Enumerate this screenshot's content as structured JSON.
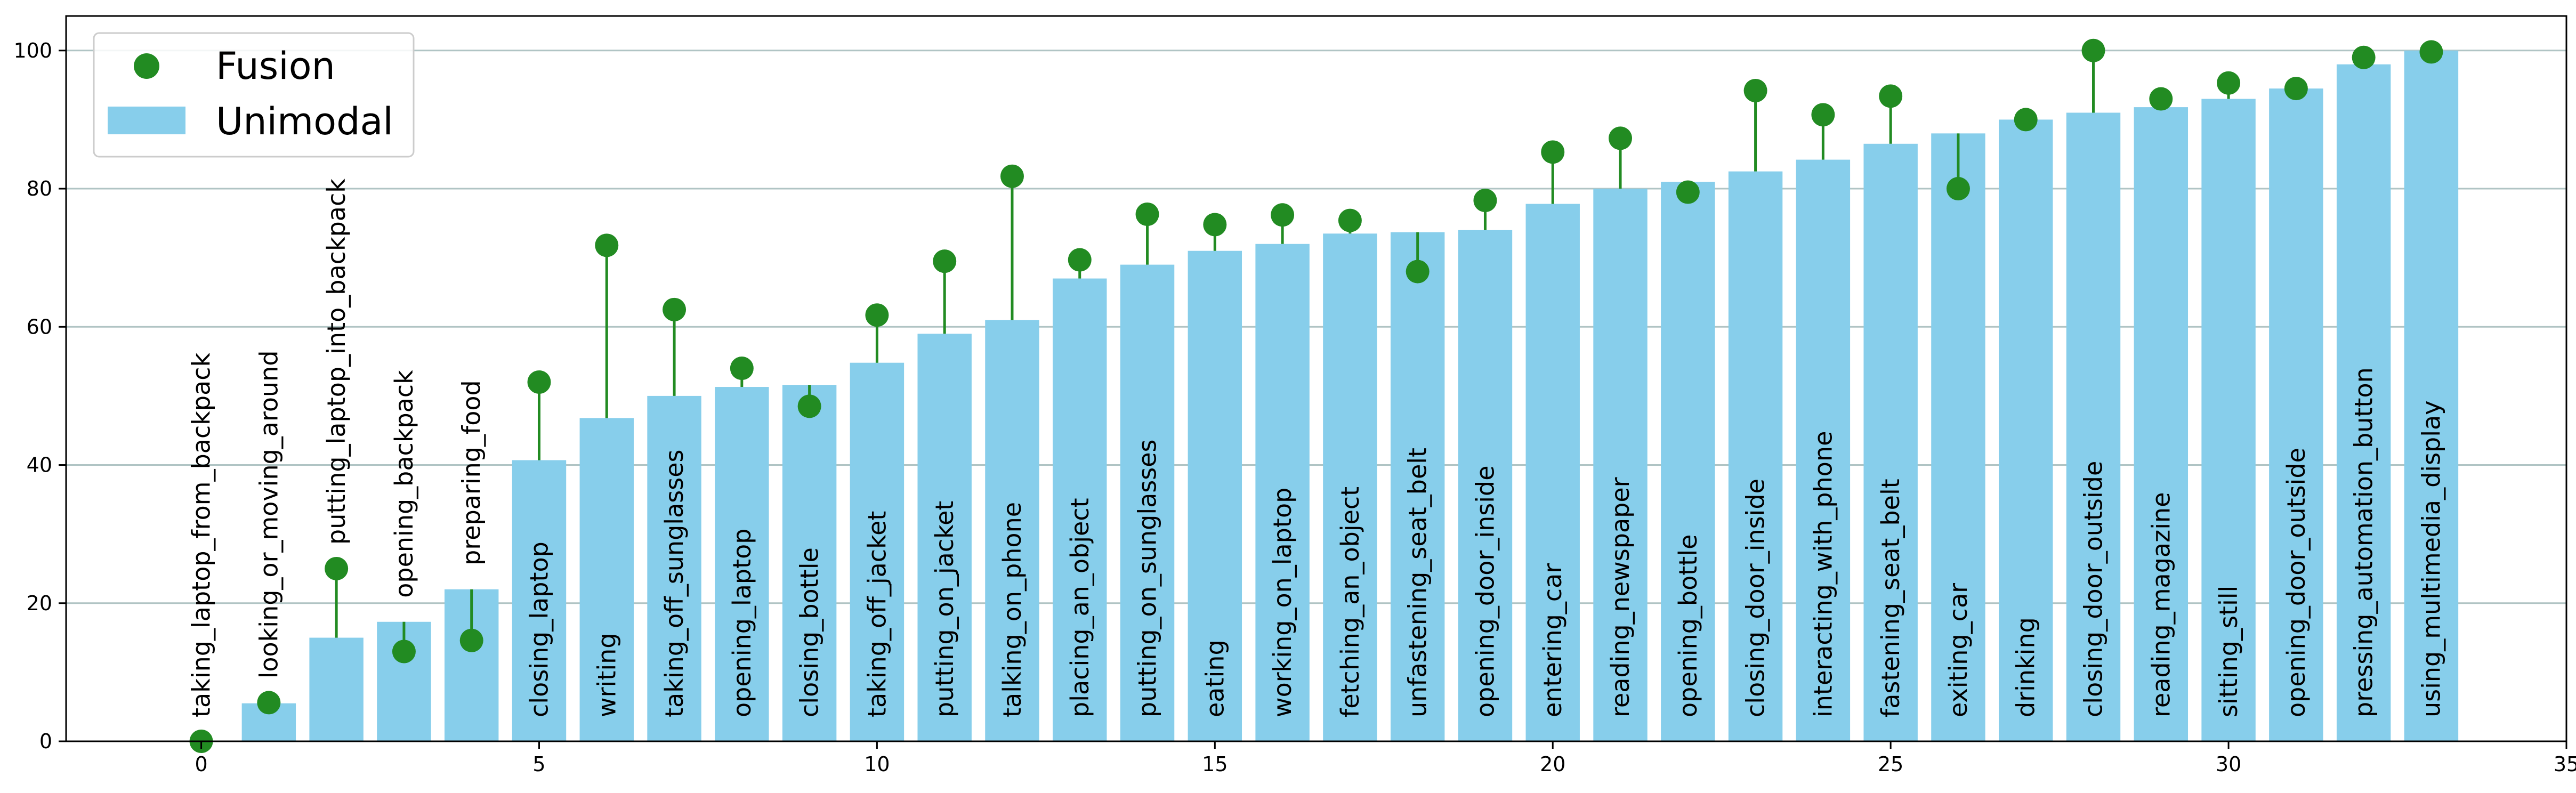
{
  "chart_data": {
    "type": "bar",
    "title": "",
    "xlabel": "",
    "ylabel": "",
    "xlim": [
      -2,
      35
    ],
    "ylim": [
      0,
      105
    ],
    "xticks": [
      0,
      5,
      10,
      15,
      20,
      25,
      30,
      35
    ],
    "yticks": [
      0,
      20,
      40,
      60,
      80,
      100
    ],
    "grid": "horizontal",
    "legend_position": "top-left",
    "colors": {
      "unimodal": "#87ceeb",
      "fusion": "#228b22",
      "grid": "#b0c4c4"
    },
    "categories": [
      "taking_laptop_from_backpack",
      "looking_or_moving_around",
      "putting_laptop_into_backpack",
      "opening_backpack",
      "preparing_food",
      "closing_laptop",
      "writing",
      "taking_off_sunglasses",
      "opening_laptop",
      "closing_bottle",
      "taking_off_jacket",
      "putting_on_jacket",
      "talking_on_phone",
      "placing_an_object",
      "putting_on_sunglasses",
      "eating",
      "working_on_laptop",
      "fetching_an_object",
      "unfastening_seat_belt",
      "opening_door_inside",
      "entering_car",
      "reading_newspaper",
      "opening_bottle",
      "closing_door_inside",
      "interacting_with_phone",
      "fastening_seat_belt",
      "exiting_car",
      "drinking",
      "closing_door_outside",
      "reading_magazine",
      "sitting_still",
      "opening_door_outside",
      "pressing_automation_button",
      "using_multimedia_display"
    ],
    "series": [
      {
        "name": "Unimodal",
        "type": "bar",
        "values": [
          0,
          5.5,
          15,
          17.3,
          22,
          40.7,
          46.8,
          50,
          51.3,
          51.6,
          54.8,
          59,
          61,
          67,
          69,
          71,
          72,
          73.5,
          73.7,
          74,
          77.8,
          80,
          81,
          82.5,
          84.2,
          86.5,
          88,
          90,
          91,
          91.8,
          93,
          94.5,
          98,
          100
        ]
      },
      {
        "name": "Fusion",
        "type": "point",
        "values": [
          0,
          5.6,
          25,
          13,
          14.6,
          52,
          71.8,
          62.5,
          54,
          48.5,
          61.7,
          69.5,
          81.8,
          69.7,
          76.3,
          74.8,
          76.2,
          75.4,
          68,
          78.3,
          85.3,
          87.3,
          79.5,
          94.2,
          90.7,
          93.4,
          80,
          90,
          100,
          93,
          95.3,
          94.5,
          99,
          99.8
        ]
      }
    ]
  }
}
